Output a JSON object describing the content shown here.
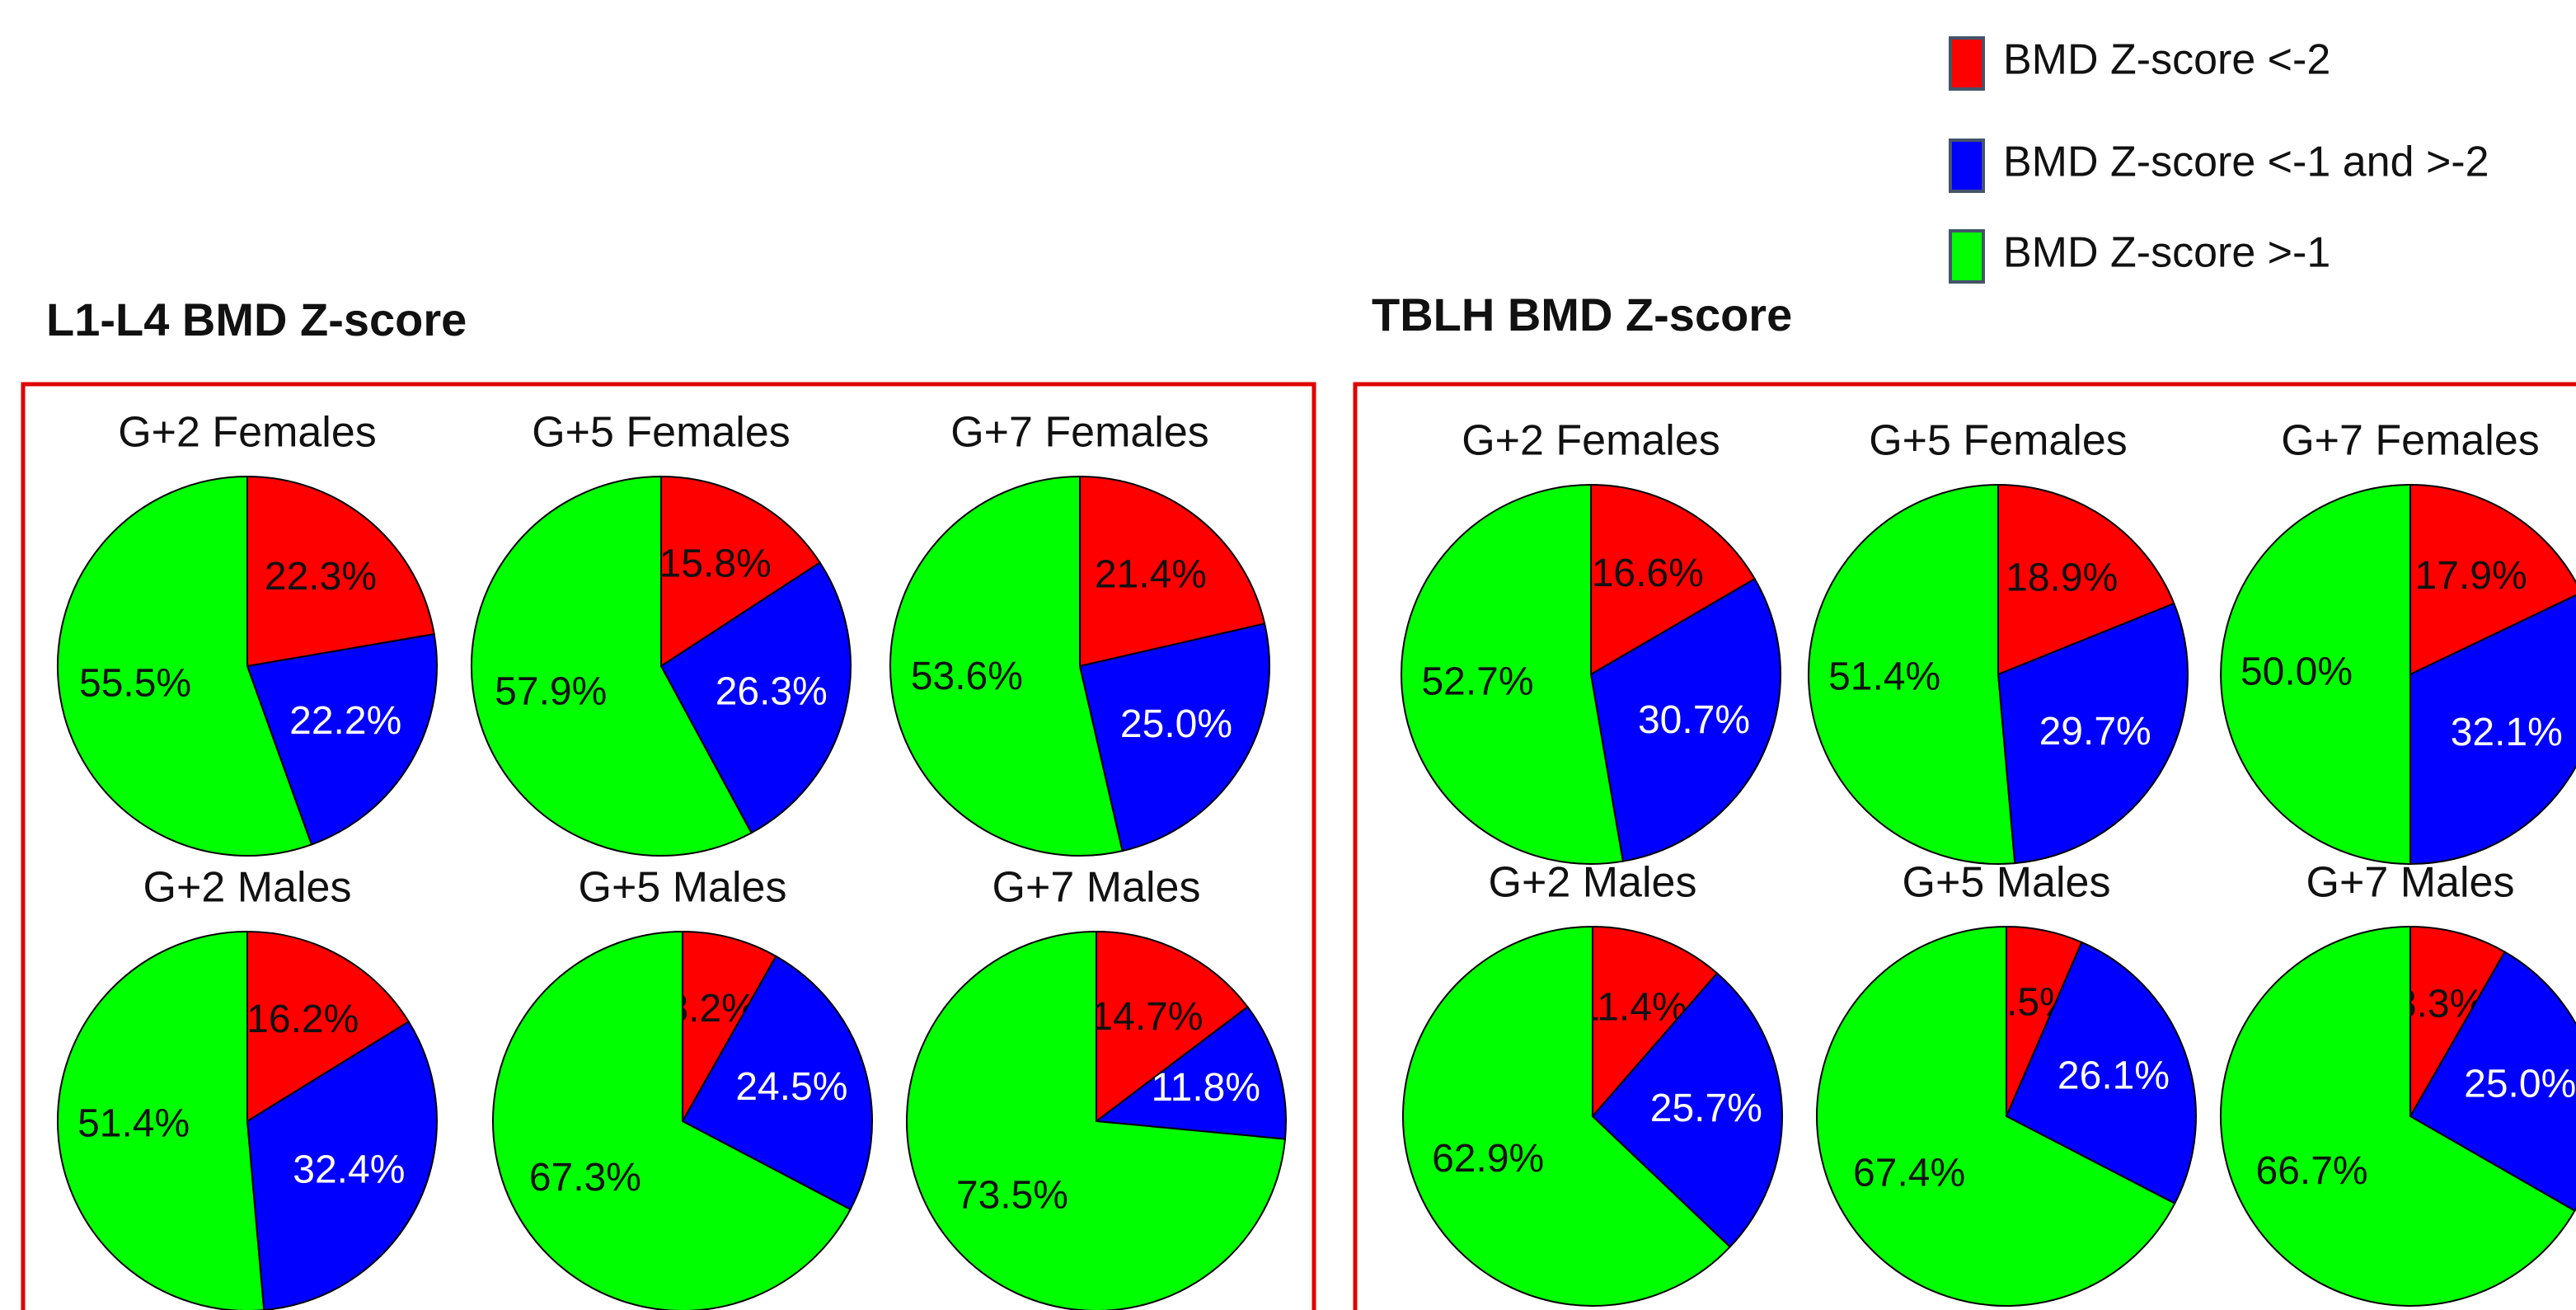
{
  "legend": {
    "labels": [
      "BMD Z-score <-2",
      "BMD Z-score <-1 and >-2",
      "BMD Z-score >-1"
    ],
    "colors": [
      "#ff0000",
      "#0000ff",
      "#00ff00"
    ]
  },
  "panels": [
    {
      "title": "L1-L4 BMD Z-score"
    },
    {
      "title": "TBLH BMD Z-score"
    }
  ],
  "chart_data": [
    {
      "type": "pie",
      "title": "G+2 Females",
      "values": [
        22.3,
        22.2,
        55.5
      ],
      "value_labels": [
        "22.3%",
        "22.2%",
        "55.5%"
      ]
    },
    {
      "type": "pie",
      "title": "G+5 Females",
      "values": [
        15.8,
        26.3,
        57.9
      ],
      "value_labels": [
        "15.8%",
        "26.3%",
        "57.9%"
      ]
    },
    {
      "type": "pie",
      "title": "G+7 Females",
      "values": [
        21.4,
        25,
        53.6
      ],
      "value_labels": [
        "21.4%",
        "25.0%",
        "53.6%"
      ]
    },
    {
      "type": "pie",
      "title": "G+2 Males",
      "values": [
        16.2,
        32.4,
        51.4
      ],
      "value_labels": [
        "16.2%",
        "32.4%",
        "51.4%"
      ]
    },
    {
      "type": "pie",
      "title": "G+5 Males",
      "values": [
        8.2,
        24.5,
        67.3
      ],
      "value_labels": [
        "8.2%",
        "24.5%",
        "67.3%"
      ]
    },
    {
      "type": "pie",
      "title": "G+7 Males",
      "values": [
        14.7,
        11.8,
        73.5
      ],
      "value_labels": [
        "14.7%",
        "11.8%",
        "73.5%"
      ]
    },
    {
      "type": "pie",
      "title": "G+2 Females",
      "values": [
        16.6,
        30.7,
        52.7
      ],
      "value_labels": [
        "16.6%",
        "30.7%",
        "52.7%"
      ]
    },
    {
      "type": "pie",
      "title": "G+5 Females",
      "values": [
        18.9,
        29.7,
        51.4
      ],
      "value_labels": [
        "18.9%",
        "29.7%",
        "51.4%"
      ]
    },
    {
      "type": "pie",
      "title": "G+7 Females",
      "values": [
        17.9,
        32.1,
        50
      ],
      "value_labels": [
        "17.9%",
        "32.1%",
        "50.0%"
      ]
    },
    {
      "type": "pie",
      "title": "G+2 Males",
      "values": [
        11.4,
        25.7,
        62.9
      ],
      "value_labels": [
        "11.4%",
        "25.7%",
        "62.9%"
      ]
    },
    {
      "type": "pie",
      "title": "G+5 Males",
      "values": [
        6.5,
        26.1,
        67.4
      ],
      "value_labels": [
        "6.5%",
        "26.1%",
        "67.4%"
      ]
    },
    {
      "type": "pie",
      "title": "G+7 Males",
      "values": [
        8.3,
        25,
        66.7
      ],
      "value_labels": [
        "8.3%",
        "25.0%",
        "66.7%"
      ]
    }
  ]
}
